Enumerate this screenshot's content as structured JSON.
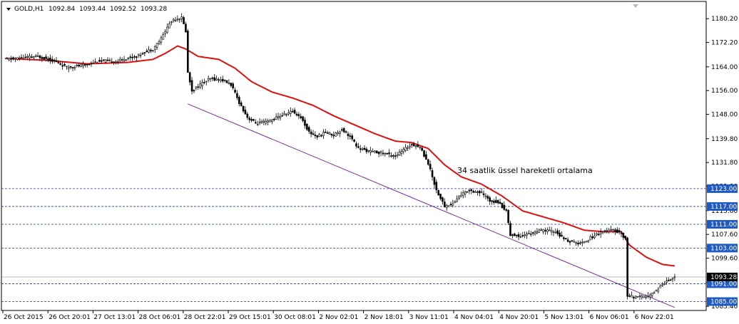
{
  "chart_data": {
    "type": "candlestick",
    "symbol": "GOLD,H1",
    "ohlc": [
      "1092.84",
      "1093.44",
      "1092.52",
      "1093.28"
    ],
    "ylim": [
      1082.0,
      1186.0
    ],
    "y_ticks": [
      "1180.20",
      "1172.20",
      "1164.00",
      "1156.00",
      "1148.00",
      "1139.80",
      "1131.80",
      "1123.80",
      "1115.60",
      "1107.60",
      "1099.60",
      "1091.40",
      "1083.40"
    ],
    "x_ticks": [
      "26 Oct 2015",
      "26 Oct 20:01",
      "27 Oct 13:01",
      "28 Oct 06:01",
      "28 Oct 22:01",
      "29 Oct 15:01",
      "30 Oct 08:01",
      "2 Nov 02:01",
      "2 Nov 18:01",
      "3 Nov 11:01",
      "4 Nov 04:01",
      "4 Nov 20:01",
      "5 Nov 13:01",
      "6 Nov 06:01",
      "6 Nov 22:01"
    ],
    "levels": [
      {
        "value": 1123.0,
        "label": "1123.00"
      },
      {
        "value": 1117.0,
        "label": "1117.00"
      },
      {
        "value": 1111.0,
        "label": "1111.00"
      },
      {
        "value": 1103.0,
        "label": "1103.00"
      },
      {
        "value": 1091.0,
        "label": "1091.00"
      },
      {
        "value": 1085.0,
        "label": "1085.00"
      }
    ],
    "current_price": {
      "value": 1093.28,
      "label": "1093.28"
    },
    "ema_period": 34,
    "annotation": "34 saatlik üssel hareketli ortalama",
    "price_anchors": [
      [
        0,
        1166.5
      ],
      [
        16,
        1167.5
      ],
      [
        24,
        1166.0
      ],
      [
        30,
        1163.8
      ],
      [
        38,
        1164.5
      ],
      [
        46,
        1166.0
      ],
      [
        54,
        1165.8
      ],
      [
        60,
        1167.0
      ],
      [
        64,
        1167.5
      ],
      [
        68,
        1169.0
      ],
      [
        72,
        1170.0
      ],
      [
        76,
        1173.5
      ],
      [
        78,
        1176.0
      ],
      [
        80,
        1178.5
      ],
      [
        82,
        1180.0
      ],
      [
        86,
        1180.5
      ],
      [
        88,
        1176.0
      ],
      [
        89,
        1162.0
      ],
      [
        91,
        1156.0
      ],
      [
        96,
        1158.5
      ],
      [
        100,
        1160.0
      ],
      [
        106,
        1159.5
      ],
      [
        110,
        1158.0
      ],
      [
        114,
        1152.0
      ],
      [
        118,
        1147.0
      ],
      [
        122,
        1145.0
      ],
      [
        128,
        1145.5
      ],
      [
        134,
        1147.5
      ],
      [
        140,
        1149.0
      ],
      [
        144,
        1147.0
      ],
      [
        148,
        1142.0
      ],
      [
        152,
        1140.5
      ],
      [
        156,
        1142.0
      ],
      [
        160,
        1141.0
      ],
      [
        164,
        1143.0
      ],
      [
        168,
        1140.5
      ],
      [
        172,
        1136.5
      ],
      [
        178,
        1135.5
      ],
      [
        184,
        1135.0
      ],
      [
        190,
        1134.0
      ],
      [
        194,
        1136.0
      ],
      [
        198,
        1138.0
      ],
      [
        202,
        1137.0
      ],
      [
        206,
        1131.5
      ],
      [
        210,
        1122.5
      ],
      [
        214,
        1117.0
      ],
      [
        218,
        1118.0
      ],
      [
        222,
        1121.0
      ],
      [
        226,
        1122.5
      ],
      [
        232,
        1121.5
      ],
      [
        236,
        1119.0
      ],
      [
        240,
        1118.5
      ],
      [
        244,
        1115.5
      ],
      [
        246,
        1107.5
      ],
      [
        250,
        1107.0
      ],
      [
        256,
        1108.0
      ],
      [
        262,
        1109.0
      ],
      [
        268,
        1108.5
      ],
      [
        272,
        1106.0
      ],
      [
        276,
        1105.0
      ],
      [
        280,
        1104.5
      ],
      [
        284,
        1106.0
      ],
      [
        290,
        1108.5
      ],
      [
        296,
        1109.0
      ],
      [
        300,
        1108.0
      ],
      [
        302,
        1106.0
      ],
      [
        303,
        1087.0
      ],
      [
        306,
        1086.5
      ],
      [
        310,
        1086.5
      ],
      [
        314,
        1087.0
      ],
      [
        318,
        1089.5
      ],
      [
        322,
        1092.0
      ],
      [
        326,
        1093.3
      ]
    ],
    "ema_anchors": [
      [
        0,
        1166.8
      ],
      [
        20,
        1166.2
      ],
      [
        40,
        1165.0
      ],
      [
        60,
        1165.5
      ],
      [
        72,
        1166.5
      ],
      [
        78,
        1168.5
      ],
      [
        84,
        1171.0
      ],
      [
        88,
        1170.0
      ],
      [
        94,
        1167.5
      ],
      [
        104,
        1166.5
      ],
      [
        112,
        1163.5
      ],
      [
        120,
        1159.0
      ],
      [
        130,
        1155.5
      ],
      [
        140,
        1153.5
      ],
      [
        150,
        1151.0
      ],
      [
        160,
        1147.5
      ],
      [
        170,
        1144.5
      ],
      [
        180,
        1141.5
      ],
      [
        190,
        1139.0
      ],
      [
        198,
        1138.5
      ],
      [
        206,
        1136.5
      ],
      [
        214,
        1131.0
      ],
      [
        222,
        1127.0
      ],
      [
        232,
        1124.5
      ],
      [
        242,
        1120.5
      ],
      [
        252,
        1115.5
      ],
      [
        262,
        1113.5
      ],
      [
        272,
        1111.5
      ],
      [
        282,
        1109.0
      ],
      [
        292,
        1108.5
      ],
      [
        300,
        1108.5
      ],
      [
        304,
        1104.0
      ],
      [
        312,
        1100.0
      ],
      [
        320,
        1097.5
      ],
      [
        326,
        1097.0
      ]
    ],
    "channel_line": [
      [
        89,
        1151.5
      ],
      [
        326,
        1083.0
      ]
    ]
  }
}
